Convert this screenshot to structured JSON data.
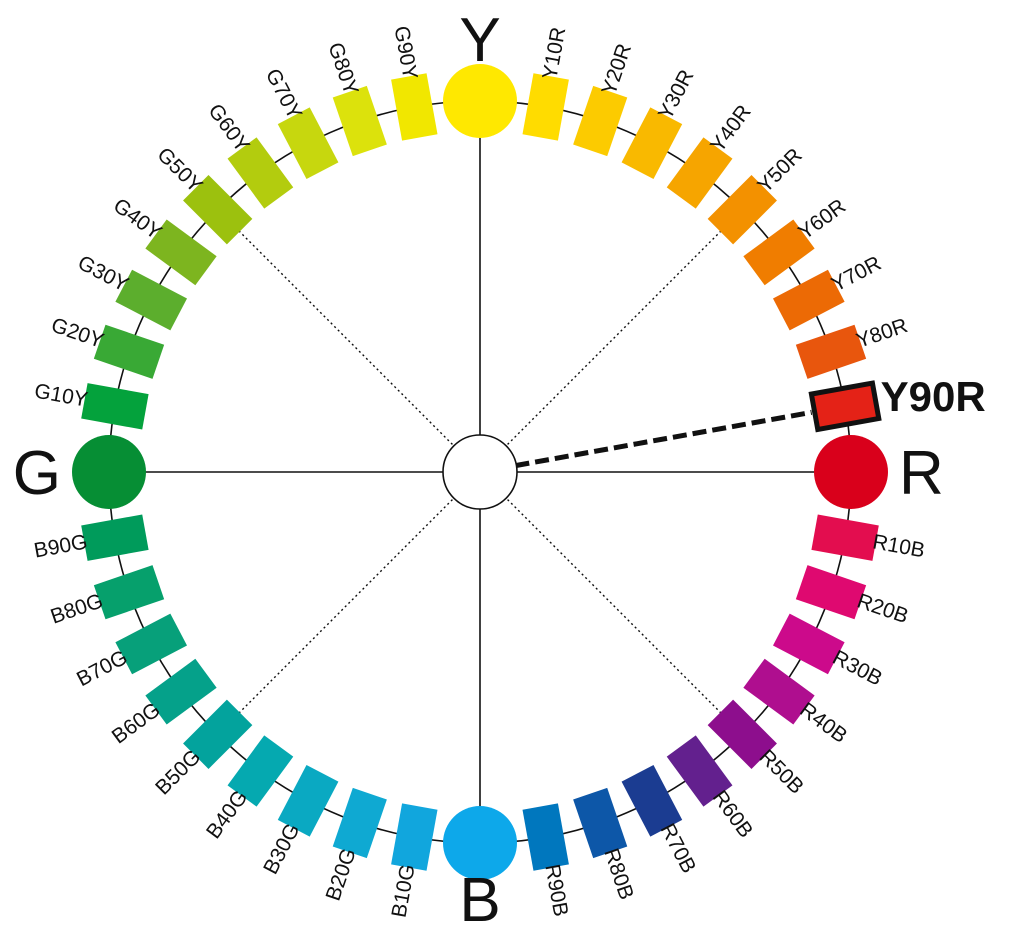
{
  "primaries": [
    {
      "id": "Y",
      "label": "Y",
      "color": "#FFE800"
    },
    {
      "id": "R",
      "label": "R",
      "color": "#D9001B"
    },
    {
      "id": "B",
      "label": "B",
      "color": "#0DA8EA"
    },
    {
      "id": "G",
      "label": "G",
      "color": "#068E34"
    }
  ],
  "hues": [
    {
      "label": "Y10R",
      "color": "#FFDC00"
    },
    {
      "label": "Y20R",
      "color": "#FCCB00"
    },
    {
      "label": "Y30R",
      "color": "#F9B900"
    },
    {
      "label": "Y40R",
      "color": "#F6A500"
    },
    {
      "label": "Y50R",
      "color": "#F39100"
    },
    {
      "label": "Y60R",
      "color": "#F07D00"
    },
    {
      "label": "Y70R",
      "color": "#EC6A05"
    },
    {
      "label": "Y80R",
      "color": "#E8560D"
    },
    {
      "label": "Y90R",
      "color": "#E42217",
      "selected": true
    },
    {
      "label": "R10B",
      "color": "#E30D4F"
    },
    {
      "label": "R20B",
      "color": "#DF0970"
    },
    {
      "label": "R30B",
      "color": "#CC0A8B"
    },
    {
      "label": "R40B",
      "color": "#AF0E8F"
    },
    {
      "label": "R50B",
      "color": "#8D0E8D"
    },
    {
      "label": "R60B",
      "color": "#63208E"
    },
    {
      "label": "R70B",
      "color": "#1B3C91"
    },
    {
      "label": "R80B",
      "color": "#0D57A8"
    },
    {
      "label": "R90B",
      "color": "#0077BE"
    },
    {
      "label": "B10G",
      "color": "#11A6DD"
    },
    {
      "label": "B20G",
      "color": "#0FA9D2"
    },
    {
      "label": "B30G",
      "color": "#0AA9C2"
    },
    {
      "label": "B40G",
      "color": "#05A9B0"
    },
    {
      "label": "B50G",
      "color": "#03A39D"
    },
    {
      "label": "B60G",
      "color": "#05A18A"
    },
    {
      "label": "B70G",
      "color": "#07A07A"
    },
    {
      "label": "B80G",
      "color": "#06A06C"
    },
    {
      "label": "B90G",
      "color": "#009B5B"
    },
    {
      "label": "G10Y",
      "color": "#04A23C"
    },
    {
      "label": "G20Y",
      "color": "#39A935"
    },
    {
      "label": "G30Y",
      "color": "#5CAE2D"
    },
    {
      "label": "G40Y",
      "color": "#7DB51F"
    },
    {
      "label": "G50Y",
      "color": "#9CC10E"
    },
    {
      "label": "G60Y",
      "color": "#B3CC0E"
    },
    {
      "label": "G70Y",
      "color": "#C7D70E"
    },
    {
      "label": "G80Y",
      "color": "#DCE20C"
    },
    {
      "label": "G90Y",
      "color": "#F1E700"
    }
  ],
  "selected": {
    "label": "Y90R"
  },
  "colors": {
    "ring": "#111111",
    "center_fill": "#ffffff",
    "selected_border": "#111111"
  }
}
